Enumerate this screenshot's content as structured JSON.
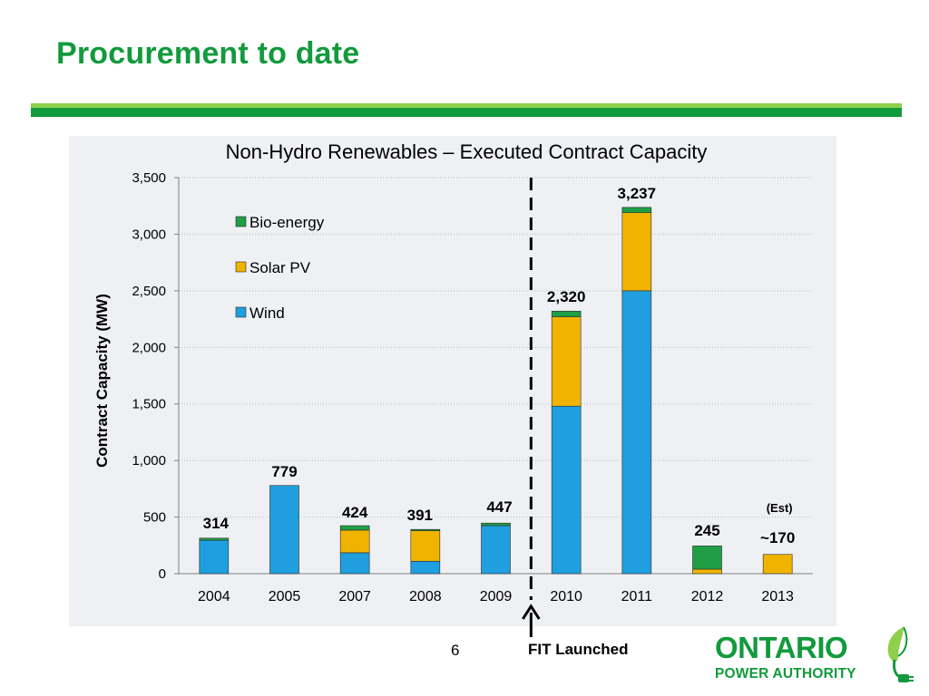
{
  "slide": {
    "title": "Procurement to date",
    "page_number": "6",
    "fit_label": "FIT Launched"
  },
  "logo": {
    "word": "ONTARIO",
    "sub": "POWER AUTHORITY",
    "icon": "plug-leaf-icon"
  },
  "colors": {
    "title_green": "#129a3d",
    "rule_light": "#8fcf4a",
    "wind": "#1f9fdf",
    "solar": "#f0b400",
    "bio": "#1f9e45"
  },
  "chart_data": {
    "type": "bar",
    "stacked": true,
    "title": "Non-Hydro Renewables – Executed Contract Capacity",
    "ylabel": "Contract Capacity (MW)",
    "xlabel": "",
    "ylim": [
      0,
      3500
    ],
    "yticks": [
      0,
      500,
      1000,
      1500,
      2000,
      2500,
      3000,
      3500
    ],
    "ytick_labels": [
      "0",
      "500",
      "1,000",
      "1,500",
      "2,000",
      "2,500",
      "3,000",
      "3,500"
    ],
    "grid": true,
    "legend_position": "top-left",
    "categories": [
      "2004",
      "2005",
      "2007",
      "2008",
      "2009",
      "2010",
      "2011",
      "2012",
      "2013"
    ],
    "series": [
      {
        "name": "Wind",
        "color": "#1f9fdf",
        "values": [
          295,
          779,
          185,
          110,
          425,
          1480,
          2500,
          0,
          0
        ]
      },
      {
        "name": "Solar PV",
        "color": "#f0b400",
        "values": [
          0,
          0,
          200,
          270,
          0,
          790,
          690,
          40,
          170
        ]
      },
      {
        "name": "Bio-energy",
        "color": "#1f9e45",
        "values": [
          19,
          0,
          39,
          11,
          22,
          50,
          47,
          205,
          0
        ]
      }
    ],
    "legend_order": [
      "Bio-energy",
      "Solar PV",
      "Wind"
    ],
    "totals": [
      314,
      779,
      424,
      391,
      447,
      2320,
      3237,
      245,
      170
    ],
    "total_labels": [
      "314",
      "779",
      "424",
      "391",
      "447",
      "2,320",
      "3,237",
      "245",
      "~170"
    ],
    "annotations": [
      {
        "text": "(Est)",
        "category": "2013"
      },
      {
        "text": "FIT Launched",
        "between": [
          "2009",
          "2010"
        ]
      }
    ]
  }
}
